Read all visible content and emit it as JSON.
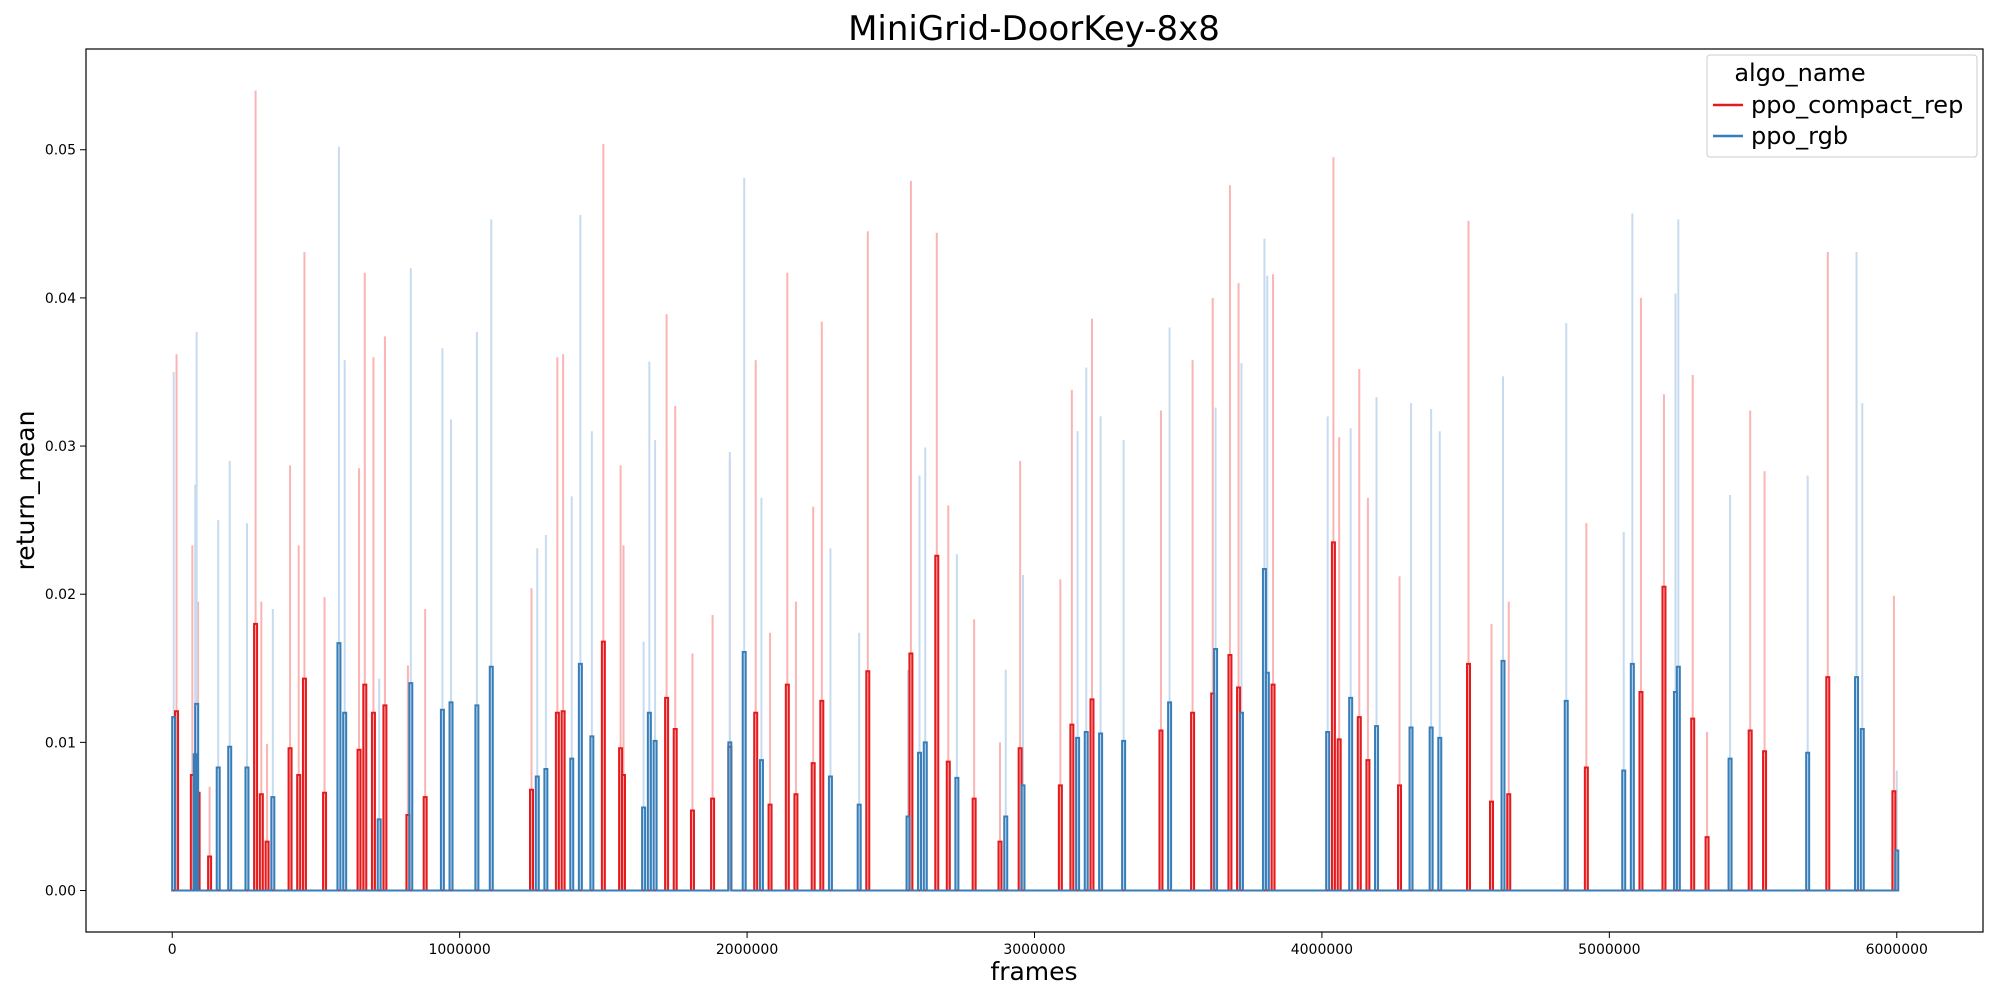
{
  "chart_data": {
    "type": "line",
    "title": "MiniGrid-DoorKey-8x8",
    "xlabel": "frames",
    "ylabel": "return_mean",
    "xlim": [
      -300000,
      6300000
    ],
    "ylim": [
      -0.0028,
      0.0568
    ],
    "xticks": [
      0,
      1000000,
      2000000,
      3000000,
      4000000,
      5000000,
      6000000
    ],
    "xtick_labels": [
      "0",
      "1000000",
      "2000000",
      "3000000",
      "4000000",
      "5000000",
      "6000000"
    ],
    "yticks": [
      0.0,
      0.01,
      0.02,
      0.03,
      0.04,
      0.05
    ],
    "ytick_labels": [
      "0.00",
      "0.01",
      "0.02",
      "0.03",
      "0.04",
      "0.05"
    ],
    "grid": false,
    "legend": {
      "title": "algo_name",
      "placement": "top-right",
      "entries": [
        "ppo_compact_rep",
        "ppo_rgb"
      ]
    },
    "series": [
      {
        "name": "ppo_compact_rep",
        "color": "#e41a1c",
        "band_color": "#fbb4b4",
        "points": [
          [
            15000,
            0.0121,
            0.0362
          ],
          [
            70000,
            0.0078,
            0.0233
          ],
          [
            90000,
            0.0066,
            0.0195
          ],
          [
            130000,
            0.0023,
            0.007
          ],
          [
            290000,
            0.018,
            0.054
          ],
          [
            310000,
            0.0065,
            0.0195
          ],
          [
            330000,
            0.0033,
            0.0099
          ],
          [
            410000,
            0.0096,
            0.0287
          ],
          [
            440000,
            0.0078,
            0.0233
          ],
          [
            460000,
            0.0143,
            0.0431
          ],
          [
            530000,
            0.0066,
            0.0198
          ],
          [
            650000,
            0.0095,
            0.0285
          ],
          [
            670000,
            0.0139,
            0.0417
          ],
          [
            700000,
            0.012,
            0.036
          ],
          [
            740000,
            0.0125,
            0.0374
          ],
          [
            820000,
            0.0051,
            0.0152
          ],
          [
            880000,
            0.0063,
            0.019
          ],
          [
            1250000,
            0.0068,
            0.0204
          ],
          [
            1340000,
            0.012,
            0.036
          ],
          [
            1360000,
            0.0121,
            0.0362
          ],
          [
            1500000,
            0.0168,
            0.0504
          ],
          [
            1560000,
            0.0096,
            0.0287
          ],
          [
            1570000,
            0.0078,
            0.0233
          ],
          [
            1720000,
            0.013,
            0.0389
          ],
          [
            1750000,
            0.0109,
            0.0327
          ],
          [
            1810000,
            0.0054,
            0.016
          ],
          [
            1880000,
            0.0062,
            0.0186
          ],
          [
            1940000,
            0.0097,
            0.029
          ],
          [
            2030000,
            0.012,
            0.0358
          ],
          [
            2080000,
            0.0058,
            0.0174
          ],
          [
            2140000,
            0.0139,
            0.0417
          ],
          [
            2170000,
            0.0065,
            0.0195
          ],
          [
            2230000,
            0.0086,
            0.0259
          ],
          [
            2260000,
            0.0128,
            0.0384
          ],
          [
            2420000,
            0.0148,
            0.0445
          ],
          [
            2570000,
            0.016,
            0.0479
          ],
          [
            2660000,
            0.0226,
            0.0444
          ],
          [
            2700000,
            0.0087,
            0.026
          ],
          [
            2790000,
            0.0062,
            0.0183
          ],
          [
            2880000,
            0.0033,
            0.01
          ],
          [
            2950000,
            0.0096,
            0.029
          ],
          [
            3090000,
            0.0071,
            0.021
          ],
          [
            3130000,
            0.0112,
            0.0338
          ],
          [
            3200000,
            0.0129,
            0.0386
          ],
          [
            3440000,
            0.0108,
            0.0324
          ],
          [
            3550000,
            0.012,
            0.0358
          ],
          [
            3620000,
            0.0133,
            0.04
          ],
          [
            3680000,
            0.0159,
            0.0476
          ],
          [
            3710000,
            0.0137,
            0.041
          ],
          [
            3830000,
            0.0139,
            0.0416
          ],
          [
            4040000,
            0.0235,
            0.0495
          ],
          [
            4060000,
            0.0102,
            0.0306
          ],
          [
            4130000,
            0.0117,
            0.0352
          ],
          [
            4160000,
            0.0088,
            0.0265
          ],
          [
            4270000,
            0.0071,
            0.0212
          ],
          [
            4510000,
            0.0153,
            0.0452
          ],
          [
            4590000,
            0.006,
            0.018
          ],
          [
            4650000,
            0.0065,
            0.0195
          ],
          [
            4920000,
            0.0083,
            0.0248
          ],
          [
            5110000,
            0.0134,
            0.04
          ],
          [
            5190000,
            0.0205,
            0.0335
          ],
          [
            5290000,
            0.0116,
            0.0348
          ],
          [
            5340000,
            0.0036,
            0.0107
          ],
          [
            5490000,
            0.0108,
            0.0324
          ],
          [
            5540000,
            0.0094,
            0.0283
          ],
          [
            5760000,
            0.0144,
            0.0431
          ],
          [
            5990000,
            0.0067,
            0.0199
          ]
        ]
      },
      {
        "name": "ppo_rgb",
        "color": "#377eb8",
        "band_color": "#c6dbef",
        "points": [
          [
            5000,
            0.0117,
            0.035
          ],
          [
            80000,
            0.0092,
            0.0274
          ],
          [
            85000,
            0.0126,
            0.0377
          ],
          [
            160000,
            0.0083,
            0.025
          ],
          [
            200000,
            0.0097,
            0.029
          ],
          [
            260000,
            0.0083,
            0.0248
          ],
          [
            350000,
            0.0063,
            0.019
          ],
          [
            580000,
            0.0167,
            0.0502
          ],
          [
            600000,
            0.012,
            0.0358
          ],
          [
            720000,
            0.0048,
            0.0143
          ],
          [
            830000,
            0.014,
            0.042
          ],
          [
            940000,
            0.0122,
            0.0366
          ],
          [
            970000,
            0.0127,
            0.0318
          ],
          [
            1060000,
            0.0125,
            0.0377
          ],
          [
            1110000,
            0.0151,
            0.0453
          ],
          [
            1270000,
            0.0077,
            0.0231
          ],
          [
            1300000,
            0.0082,
            0.024
          ],
          [
            1390000,
            0.0089,
            0.0266
          ],
          [
            1420000,
            0.0153,
            0.0456
          ],
          [
            1460000,
            0.0104,
            0.031
          ],
          [
            1640000,
            0.0056,
            0.0168
          ],
          [
            1660000,
            0.012,
            0.0357
          ],
          [
            1680000,
            0.0101,
            0.0304
          ],
          [
            1940000,
            0.01,
            0.0296
          ],
          [
            1990000,
            0.0161,
            0.0481
          ],
          [
            2050000,
            0.0088,
            0.0265
          ],
          [
            2290000,
            0.0077,
            0.0231
          ],
          [
            2390000,
            0.0058,
            0.0174
          ],
          [
            2560000,
            0.005,
            0.0149
          ],
          [
            2600000,
            0.0093,
            0.028
          ],
          [
            2620000,
            0.01,
            0.0299
          ],
          [
            2730000,
            0.0076,
            0.0227
          ],
          [
            2900000,
            0.005,
            0.0149
          ],
          [
            2960000,
            0.0071,
            0.0213
          ],
          [
            3150000,
            0.0103,
            0.031
          ],
          [
            3180000,
            0.0107,
            0.0353
          ],
          [
            3230000,
            0.0106,
            0.032
          ],
          [
            3310000,
            0.0101,
            0.0304
          ],
          [
            3470000,
            0.0127,
            0.038
          ],
          [
            3630000,
            0.0163,
            0.0326
          ],
          [
            3720000,
            0.012,
            0.0356
          ],
          [
            3800000,
            0.0217,
            0.044
          ],
          [
            3810000,
            0.0147,
            0.0415
          ],
          [
            4020000,
            0.0107,
            0.032
          ],
          [
            4100000,
            0.013,
            0.0312
          ],
          [
            4190000,
            0.0111,
            0.0333
          ],
          [
            4310000,
            0.011,
            0.0329
          ],
          [
            4380000,
            0.011,
            0.0325
          ],
          [
            4410000,
            0.0103,
            0.031
          ],
          [
            4630000,
            0.0155,
            0.0347
          ],
          [
            4850000,
            0.0128,
            0.0383
          ],
          [
            5050000,
            0.0081,
            0.0242
          ],
          [
            5080000,
            0.0153,
            0.0457
          ],
          [
            5230000,
            0.0134,
            0.0403
          ],
          [
            5240000,
            0.0151,
            0.0453
          ],
          [
            5420000,
            0.0089,
            0.0267
          ],
          [
            5690000,
            0.0093,
            0.028
          ],
          [
            5860000,
            0.0144,
            0.0431
          ],
          [
            5880000,
            0.0109,
            0.0329
          ],
          [
            6000000,
            0.0027,
            0.0081
          ]
        ]
      }
    ]
  }
}
